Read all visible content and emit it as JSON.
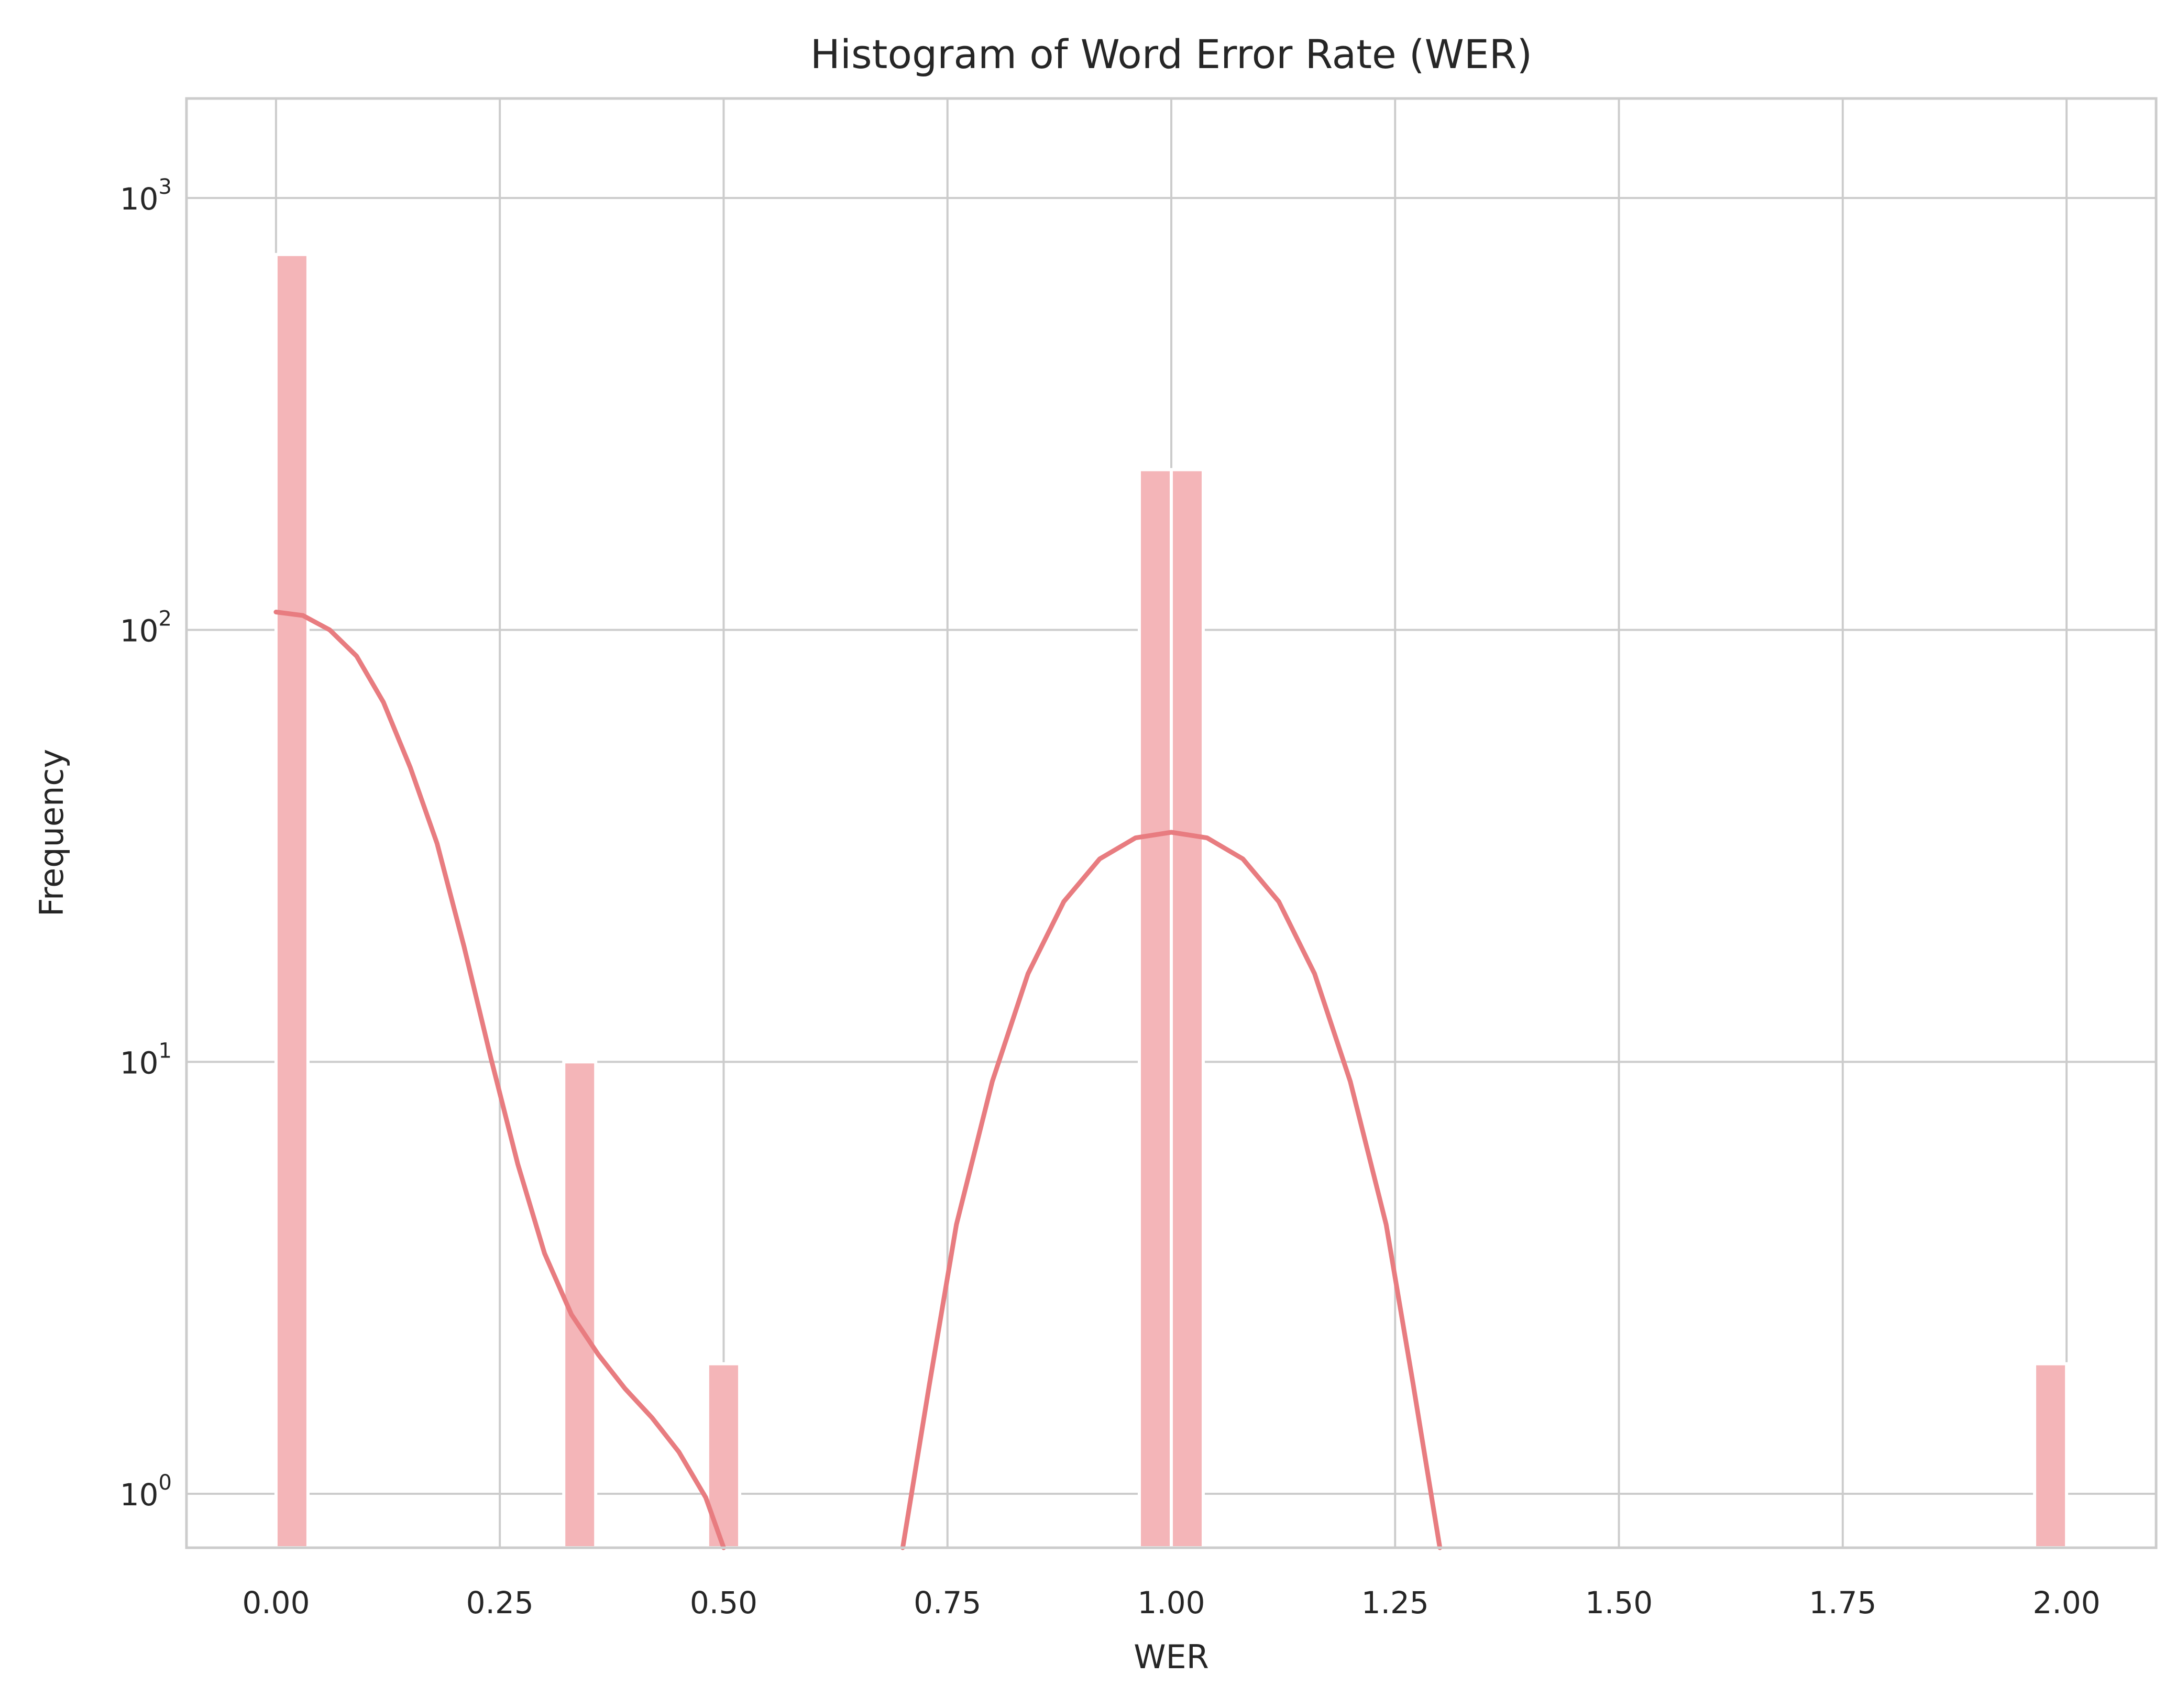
{
  "chart_data": {
    "type": "bar",
    "title": "Histogram of Word Error Rate (WER)",
    "xlabel": "WER",
    "ylabel": "Frequency",
    "yscale": "log",
    "xlim": [
      -0.1,
      2.1
    ],
    "ylim": [
      0.75,
      1700
    ],
    "grid": true,
    "xticks": [
      0.0,
      0.25,
      0.5,
      0.75,
      1.0,
      1.25,
      1.5,
      1.75,
      2.0
    ],
    "xtick_labels": [
      "0.00",
      "0.25",
      "0.50",
      "0.75",
      "1.00",
      "1.25",
      "1.50",
      "1.75",
      "2.00"
    ],
    "yticks": [
      1,
      10,
      100,
      1000
    ],
    "ytick_labels": [
      {
        "base": "10",
        "exp": "0"
      },
      {
        "base": "10",
        "exp": "1"
      },
      {
        "base": "10",
        "exp": "2"
      },
      {
        "base": "10",
        "exp": "3"
      }
    ],
    "bins": [
      {
        "x0": 0.0,
        "x1": 0.0357,
        "count": 740
      },
      {
        "x0": 0.3214,
        "x1": 0.3571,
        "count": 10
      },
      {
        "x0": 0.4821,
        "x1": 0.5179,
        "count": 2
      },
      {
        "x0": 0.9643,
        "x1": 1.0,
        "count": 235
      },
      {
        "x0": 1.0,
        "x1": 1.0357,
        "count": 235
      },
      {
        "x0": 1.9643,
        "x1": 2.0,
        "count": 2
      }
    ],
    "kde": [
      [
        [
          0.0,
          110
        ],
        [
          0.03,
          108
        ],
        [
          0.06,
          100
        ],
        [
          0.09,
          87
        ],
        [
          0.12,
          68
        ],
        [
          0.15,
          48
        ],
        [
          0.18,
          32
        ],
        [
          0.21,
          18.5
        ],
        [
          0.24,
          10.2
        ],
        [
          0.27,
          5.8
        ],
        [
          0.3,
          3.6
        ],
        [
          0.33,
          2.6
        ],
        [
          0.36,
          2.1
        ],
        [
          0.39,
          1.75
        ],
        [
          0.42,
          1.5
        ],
        [
          0.45,
          1.25
        ],
        [
          0.48,
          0.98
        ],
        [
          0.5,
          0.75
        ]
      ],
      [
        [
          0.7,
          0.75
        ],
        [
          0.73,
          1.8
        ],
        [
          0.76,
          4.2
        ],
        [
          0.8,
          9.0
        ],
        [
          0.84,
          16.0
        ],
        [
          0.88,
          23.5
        ],
        [
          0.92,
          29.5
        ],
        [
          0.96,
          33.0
        ],
        [
          1.0,
          34.0
        ],
        [
          1.04,
          33.0
        ],
        [
          1.08,
          29.5
        ],
        [
          1.12,
          23.5
        ],
        [
          1.16,
          16.0
        ],
        [
          1.2,
          9.0
        ],
        [
          1.24,
          4.2
        ],
        [
          1.27,
          1.8
        ],
        [
          1.3,
          0.75
        ]
      ]
    ],
    "bar_color": "#f4b5b8",
    "kde_color": "#e87c80",
    "grid_color": "#cccccc"
  }
}
